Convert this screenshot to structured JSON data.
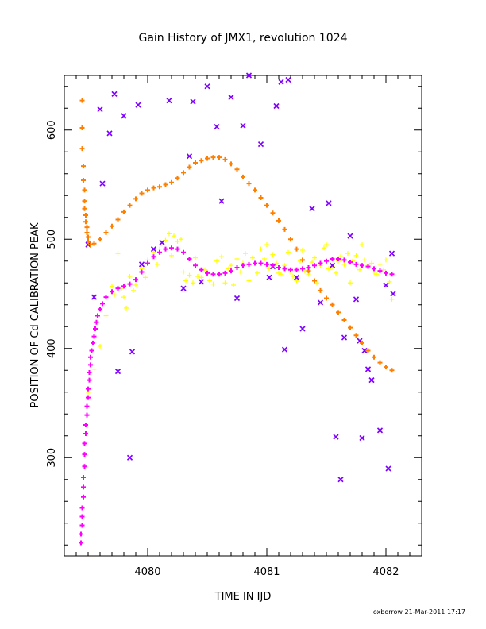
{
  "chart_data": {
    "type": "scatter",
    "title": "Gain History of JMX1, revolution 1024",
    "xlabel": "TIME IN IJD",
    "ylabel": "POSITION OF Cd CALIBRATION PEAK",
    "footer": "oxborrow 21-Mar-2011 17:17",
    "xlim": [
      4079.3,
      4082.3
    ],
    "ylim": [
      210,
      650
    ],
    "x_ticks": [
      "4080",
      "4081",
      "4082"
    ],
    "y_ticks": [
      "300",
      "400",
      "500",
      "600"
    ],
    "grid": false,
    "legend": "none",
    "colors": {
      "orange": "#ff8000",
      "magenta": "#ff00ff",
      "yellow": "#ffff00",
      "purple": "#8000ff"
    },
    "series": [
      {
        "marker": "plus",
        "color": "#ff8000",
        "points": [
          [
            4079.45,
            627
          ],
          [
            4079.45,
            602
          ],
          [
            4079.45,
            583
          ],
          [
            4079.46,
            567
          ],
          [
            4079.46,
            554
          ],
          [
            4079.47,
            545
          ],
          [
            4079.47,
            535
          ],
          [
            4079.47,
            528
          ],
          [
            4079.48,
            522
          ],
          [
            4079.48,
            516
          ],
          [
            4079.49,
            511
          ],
          [
            4079.49,
            506
          ],
          [
            4079.5,
            502
          ],
          [
            4079.5,
            498
          ],
          [
            4079.52,
            495
          ],
          [
            4079.55,
            496
          ],
          [
            4079.6,
            500
          ],
          [
            4079.65,
            506
          ],
          [
            4079.7,
            512
          ],
          [
            4079.75,
            518
          ],
          [
            4079.8,
            525
          ],
          [
            4079.85,
            531
          ],
          [
            4079.9,
            537
          ],
          [
            4079.95,
            542
          ],
          [
            4080.0,
            545
          ],
          [
            4080.05,
            547
          ],
          [
            4080.1,
            548
          ],
          [
            4080.15,
            550
          ],
          [
            4080.2,
            552
          ],
          [
            4080.25,
            556
          ],
          [
            4080.3,
            561
          ],
          [
            4080.35,
            566
          ],
          [
            4080.4,
            570
          ],
          [
            4080.45,
            572
          ],
          [
            4080.5,
            574
          ],
          [
            4080.55,
            575
          ],
          [
            4080.6,
            575
          ],
          [
            4080.65,
            573
          ],
          [
            4080.7,
            569
          ],
          [
            4080.75,
            564
          ],
          [
            4080.8,
            557
          ],
          [
            4080.85,
            551
          ],
          [
            4080.9,
            545
          ],
          [
            4080.95,
            538
          ],
          [
            4081.0,
            531
          ],
          [
            4081.05,
            524
          ],
          [
            4081.1,
            517
          ],
          [
            4081.15,
            509
          ],
          [
            4081.2,
            500
          ],
          [
            4081.25,
            491
          ],
          [
            4081.3,
            481
          ],
          [
            4081.35,
            471
          ],
          [
            4081.4,
            462
          ],
          [
            4081.45,
            453
          ],
          [
            4081.5,
            446
          ],
          [
            4081.55,
            440
          ],
          [
            4081.6,
            433
          ],
          [
            4081.65,
            426
          ],
          [
            4081.7,
            419
          ],
          [
            4081.75,
            412
          ],
          [
            4081.8,
            405
          ],
          [
            4081.85,
            398
          ],
          [
            4081.9,
            392
          ],
          [
            4081.95,
            387
          ],
          [
            4082.0,
            383
          ],
          [
            4082.05,
            380
          ]
        ]
      },
      {
        "marker": "plus",
        "color": "#ff00ff",
        "points": [
          [
            4079.44,
            222
          ],
          [
            4079.44,
            230
          ],
          [
            4079.45,
            238
          ],
          [
            4079.45,
            246
          ],
          [
            4079.45,
            254
          ],
          [
            4079.46,
            264
          ],
          [
            4079.46,
            273
          ],
          [
            4079.46,
            282
          ],
          [
            4079.47,
            292
          ],
          [
            4079.47,
            303
          ],
          [
            4079.47,
            313
          ],
          [
            4079.48,
            322
          ],
          [
            4079.48,
            330
          ],
          [
            4079.49,
            339
          ],
          [
            4079.49,
            347
          ],
          [
            4079.5,
            355
          ],
          [
            4079.5,
            363
          ],
          [
            4079.51,
            371
          ],
          [
            4079.51,
            378
          ],
          [
            4079.52,
            385
          ],
          [
            4079.52,
            392
          ],
          [
            4079.53,
            398
          ],
          [
            4079.54,
            405
          ],
          [
            4079.55,
            411
          ],
          [
            4079.56,
            418
          ],
          [
            4079.57,
            424
          ],
          [
            4079.58,
            430
          ],
          [
            4079.6,
            436
          ],
          [
            4079.62,
            441
          ],
          [
            4079.65,
            447
          ],
          [
            4079.7,
            452
          ],
          [
            4079.75,
            455
          ],
          [
            4079.8,
            457
          ],
          [
            4079.85,
            459
          ],
          [
            4079.9,
            463
          ],
          [
            4079.95,
            470
          ],
          [
            4080.0,
            478
          ],
          [
            4080.05,
            484
          ],
          [
            4080.1,
            488
          ],
          [
            4080.15,
            491
          ],
          [
            4080.2,
            492
          ],
          [
            4080.25,
            491
          ],
          [
            4080.3,
            488
          ],
          [
            4080.35,
            482
          ],
          [
            4080.4,
            476
          ],
          [
            4080.45,
            472
          ],
          [
            4080.5,
            469
          ],
          [
            4080.55,
            468
          ],
          [
            4080.6,
            468
          ],
          [
            4080.65,
            469
          ],
          [
            4080.7,
            471
          ],
          [
            4080.75,
            474
          ],
          [
            4080.8,
            476
          ],
          [
            4080.85,
            477
          ],
          [
            4080.9,
            478
          ],
          [
            4080.95,
            478
          ],
          [
            4081.0,
            477
          ],
          [
            4081.05,
            476
          ],
          [
            4081.1,
            474
          ],
          [
            4081.15,
            473
          ],
          [
            4081.2,
            472
          ],
          [
            4081.25,
            472
          ],
          [
            4081.3,
            473
          ],
          [
            4081.35,
            474
          ],
          [
            4081.4,
            476
          ],
          [
            4081.45,
            478
          ],
          [
            4081.5,
            480
          ],
          [
            4081.55,
            482
          ],
          [
            4081.6,
            482
          ],
          [
            4081.65,
            481
          ],
          [
            4081.7,
            479
          ],
          [
            4081.75,
            477
          ],
          [
            4081.8,
            476
          ],
          [
            4081.85,
            475
          ],
          [
            4081.9,
            473
          ],
          [
            4081.95,
            471
          ],
          [
            4082.0,
            469
          ],
          [
            4082.05,
            468
          ]
        ]
      },
      {
        "marker": "plus",
        "color": "#ffff00",
        "points": [
          [
            4079.5,
            360
          ],
          [
            4079.55,
            381
          ],
          [
            4079.6,
            402
          ],
          [
            4079.65,
            430
          ],
          [
            4079.7,
            457
          ],
          [
            4079.72,
            449
          ],
          [
            4079.75,
            487
          ],
          [
            4079.78,
            455
          ],
          [
            4079.8,
            447
          ],
          [
            4079.82,
            437
          ],
          [
            4079.85,
            466
          ],
          [
            4079.88,
            453
          ],
          [
            4079.9,
            458
          ],
          [
            4079.95,
            473
          ],
          [
            4079.98,
            465
          ],
          [
            4080.0,
            481
          ],
          [
            4080.05,
            488
          ],
          [
            4080.08,
            477
          ],
          [
            4080.1,
            491
          ],
          [
            4080.15,
            499
          ],
          [
            4080.18,
            505
          ],
          [
            4080.2,
            485
          ],
          [
            4080.22,
            503
          ],
          [
            4080.25,
            498
          ],
          [
            4080.28,
            500
          ],
          [
            4080.3,
            470
          ],
          [
            4080.32,
            462
          ],
          [
            4080.35,
            467
          ],
          [
            4080.38,
            460
          ],
          [
            4080.4,
            483
          ],
          [
            4080.42,
            466
          ],
          [
            4080.45,
            465
          ],
          [
            4080.48,
            472
          ],
          [
            4080.5,
            470
          ],
          [
            4080.52,
            462
          ],
          [
            4080.55,
            459
          ],
          [
            4080.58,
            480
          ],
          [
            4080.6,
            468
          ],
          [
            4080.62,
            484
          ],
          [
            4080.65,
            460
          ],
          [
            4080.68,
            473
          ],
          [
            4080.7,
            476
          ],
          [
            4080.72,
            458
          ],
          [
            4080.75,
            482
          ],
          [
            4080.78,
            470
          ],
          [
            4080.8,
            478
          ],
          [
            4080.82,
            487
          ],
          [
            4080.85,
            462
          ],
          [
            4080.88,
            483
          ],
          [
            4080.9,
            478
          ],
          [
            4080.92,
            469
          ],
          [
            4080.95,
            491
          ],
          [
            4080.98,
            482
          ],
          [
            4081.0,
            495
          ],
          [
            4081.02,
            473
          ],
          [
            4081.05,
            486
          ],
          [
            4081.08,
            478
          ],
          [
            4081.1,
            469
          ],
          [
            4081.12,
            468
          ],
          [
            4081.15,
            476
          ],
          [
            4081.18,
            488
          ],
          [
            4081.2,
            470
          ],
          [
            4081.22,
            466
          ],
          [
            4081.25,
            462
          ],
          [
            4081.28,
            480
          ],
          [
            4081.3,
            490
          ],
          [
            4081.32,
            471
          ],
          [
            4081.35,
            468
          ],
          [
            4081.38,
            479
          ],
          [
            4081.4,
            483
          ],
          [
            4081.42,
            460
          ],
          [
            4081.45,
            476
          ],
          [
            4081.48,
            492
          ],
          [
            4081.5,
            495
          ],
          [
            4081.52,
            473
          ],
          [
            4081.55,
            475
          ],
          [
            4081.58,
            469
          ],
          [
            4081.6,
            480
          ],
          [
            4081.62,
            484
          ],
          [
            4081.65,
            477
          ],
          [
            4081.68,
            487
          ],
          [
            4081.7,
            460
          ],
          [
            4081.72,
            480
          ],
          [
            4081.75,
            485
          ],
          [
            4081.78,
            472
          ],
          [
            4081.8,
            495
          ],
          [
            4081.82,
            481
          ],
          [
            4081.85,
            476
          ],
          [
            4081.88,
            478
          ],
          [
            4081.9,
            470
          ],
          [
            4081.92,
            468
          ],
          [
            4081.95,
            477
          ],
          [
            4081.98,
            472
          ],
          [
            4082.0,
            481
          ],
          [
            4082.03,
            461
          ],
          [
            4082.05,
            445
          ]
        ]
      },
      {
        "marker": "cross",
        "color": "#8000ff",
        "points": [
          [
            4079.5,
            495
          ],
          [
            4079.55,
            447
          ],
          [
            4079.6,
            619
          ],
          [
            4079.62,
            551
          ],
          [
            4079.68,
            597
          ],
          [
            4079.72,
            633
          ],
          [
            4079.75,
            379
          ],
          [
            4079.8,
            613
          ],
          [
            4079.85,
            300
          ],
          [
            4079.87,
            397
          ],
          [
            4079.92,
            623
          ],
          [
            4079.95,
            477
          ],
          [
            4080.05,
            491
          ],
          [
            4080.12,
            497
          ],
          [
            4080.18,
            627
          ],
          [
            4080.3,
            455
          ],
          [
            4080.35,
            576
          ],
          [
            4080.38,
            626
          ],
          [
            4080.45,
            461
          ],
          [
            4080.5,
            640
          ],
          [
            4080.58,
            603
          ],
          [
            4080.62,
            535
          ],
          [
            4080.7,
            630
          ],
          [
            4080.8,
            604
          ],
          [
            4080.75,
            446
          ],
          [
            4080.85,
            650
          ],
          [
            4080.95,
            587
          ],
          [
            4081.02,
            465
          ],
          [
            4081.05,
            475
          ],
          [
            4081.08,
            622
          ],
          [
            4081.12,
            644
          ],
          [
            4081.15,
            399
          ],
          [
            4081.18,
            646
          ],
          [
            4081.25,
            465
          ],
          [
            4081.3,
            418
          ],
          [
            4081.38,
            528
          ],
          [
            4081.45,
            442
          ],
          [
            4081.52,
            533
          ],
          [
            4081.55,
            476
          ],
          [
            4081.58,
            319
          ],
          [
            4081.62,
            280
          ],
          [
            4081.65,
            410
          ],
          [
            4081.7,
            503
          ],
          [
            4081.75,
            445
          ],
          [
            4081.78,
            407
          ],
          [
            4081.8,
            318
          ],
          [
            4081.82,
            398
          ],
          [
            4081.85,
            381
          ],
          [
            4081.88,
            371
          ],
          [
            4081.95,
            325
          ],
          [
            4082.0,
            458
          ],
          [
            4082.02,
            290
          ],
          [
            4082.05,
            487
          ],
          [
            4082.06,
            450
          ]
        ]
      }
    ]
  }
}
